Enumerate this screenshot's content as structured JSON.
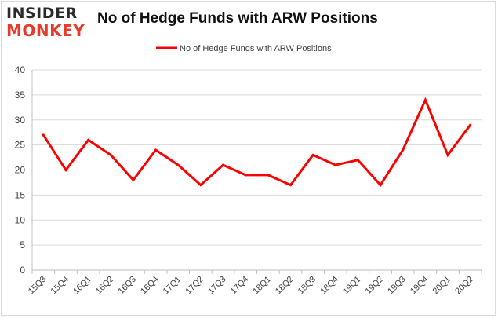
{
  "logo": {
    "line1": "INSIDER",
    "line2": "MONKEY"
  },
  "chart_data": {
    "type": "line",
    "title": "No of Hedge Funds with ARW Positions",
    "xlabel": "",
    "ylabel": "",
    "categories": [
      "15Q3",
      "15Q4",
      "16Q1",
      "16Q2",
      "16Q3",
      "16Q4",
      "17Q1",
      "17Q2",
      "17Q3",
      "17Q4",
      "18Q1",
      "18Q2",
      "18Q3",
      "18Q4",
      "19Q1",
      "19Q2",
      "19Q3",
      "19Q4",
      "20Q1",
      "20Q2"
    ],
    "series": [
      {
        "name": "No of Hedge Funds with ARW Positions",
        "values": [
          27,
          20,
          26,
          23,
          18,
          24,
          21,
          17,
          21,
          19,
          19,
          17,
          23,
          21,
          22,
          17,
          24,
          34,
          23,
          29
        ]
      }
    ],
    "ylim": [
      0,
      40
    ],
    "yticks": [
      0,
      5,
      10,
      15,
      20,
      25,
      30,
      35,
      40
    ],
    "grid": true,
    "legend": "top-center",
    "colors": {
      "line": "#ff0000",
      "grid": "#d9d9d9",
      "axis": "#bfbfbf",
      "text": "#404040"
    }
  }
}
